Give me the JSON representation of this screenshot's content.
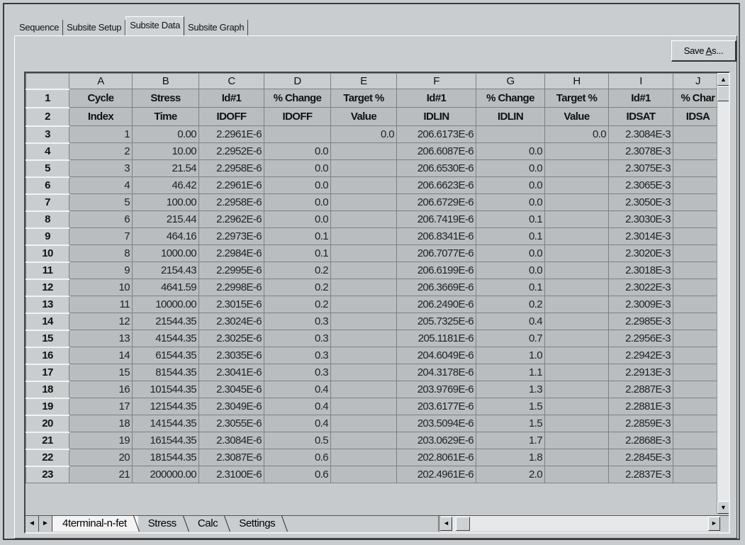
{
  "tabs": [
    {
      "label": "Sequence",
      "active": false
    },
    {
      "label": "Subsite Setup",
      "active": false
    },
    {
      "label": "Subsite Data",
      "active": true
    },
    {
      "label": "Subsite Graph",
      "active": false
    }
  ],
  "toolbar": {
    "save_as_prefix": "Save ",
    "save_as_mnemonic": "A",
    "save_as_suffix": "s..."
  },
  "grid": {
    "column_letters": [
      "A",
      "B",
      "C",
      "D",
      "E",
      "F",
      "G",
      "H",
      "I",
      "J"
    ],
    "header_row_1": [
      "Cycle",
      "Stress",
      "Id#1",
      "% Change",
      "Target %",
      "Id#1",
      "% Change",
      "Target %",
      "Id#1",
      "% Char"
    ],
    "header_row_2": [
      "Index",
      "Time",
      "IDOFF",
      "IDOFF",
      "Value",
      "IDLIN",
      "IDLIN",
      "Value",
      "IDSAT",
      "IDSA"
    ],
    "rows": [
      [
        "1",
        "0.00",
        "2.2961E-6",
        "",
        "0.0",
        "206.6173E-6",
        "",
        "0.0",
        "2.3084E-3",
        ""
      ],
      [
        "2",
        "10.00",
        "2.2952E-6",
        "0.0",
        "",
        "206.6087E-6",
        "0.0",
        "",
        "2.3078E-3",
        ""
      ],
      [
        "3",
        "21.54",
        "2.2958E-6",
        "0.0",
        "",
        "206.6530E-6",
        "0.0",
        "",
        "2.3075E-3",
        ""
      ],
      [
        "4",
        "46.42",
        "2.2961E-6",
        "0.0",
        "",
        "206.6623E-6",
        "0.0",
        "",
        "2.3065E-3",
        ""
      ],
      [
        "5",
        "100.00",
        "2.2958E-6",
        "0.0",
        "",
        "206.6729E-6",
        "0.0",
        "",
        "2.3050E-3",
        ""
      ],
      [
        "6",
        "215.44",
        "2.2962E-6",
        "0.0",
        "",
        "206.7419E-6",
        "0.1",
        "",
        "2.3030E-3",
        ""
      ],
      [
        "7",
        "464.16",
        "2.2973E-6",
        "0.1",
        "",
        "206.8341E-6",
        "0.1",
        "",
        "2.3014E-3",
        ""
      ],
      [
        "8",
        "1000.00",
        "2.2984E-6",
        "0.1",
        "",
        "206.7077E-6",
        "0.0",
        "",
        "2.3020E-3",
        ""
      ],
      [
        "9",
        "2154.43",
        "2.2995E-6",
        "0.2",
        "",
        "206.6199E-6",
        "0.0",
        "",
        "2.3018E-3",
        ""
      ],
      [
        "10",
        "4641.59",
        "2.2998E-6",
        "0.2",
        "",
        "206.3669E-6",
        "0.1",
        "",
        "2.3022E-3",
        ""
      ],
      [
        "11",
        "10000.00",
        "2.3015E-6",
        "0.2",
        "",
        "206.2490E-6",
        "0.2",
        "",
        "2.3009E-3",
        ""
      ],
      [
        "12",
        "21544.35",
        "2.3024E-6",
        "0.3",
        "",
        "205.7325E-6",
        "0.4",
        "",
        "2.2985E-3",
        ""
      ],
      [
        "13",
        "41544.35",
        "2.3025E-6",
        "0.3",
        "",
        "205.1181E-6",
        "0.7",
        "",
        "2.2956E-3",
        ""
      ],
      [
        "14",
        "61544.35",
        "2.3035E-6",
        "0.3",
        "",
        "204.6049E-6",
        "1.0",
        "",
        "2.2942E-3",
        ""
      ],
      [
        "15",
        "81544.35",
        "2.3041E-6",
        "0.3",
        "",
        "204.3178E-6",
        "1.1",
        "",
        "2.2913E-3",
        ""
      ],
      [
        "16",
        "101544.35",
        "2.3045E-6",
        "0.4",
        "",
        "203.9769E-6",
        "1.3",
        "",
        "2.2887E-3",
        ""
      ],
      [
        "17",
        "121544.35",
        "2.3049E-6",
        "0.4",
        "",
        "203.6177E-6",
        "1.5",
        "",
        "2.2881E-3",
        ""
      ],
      [
        "18",
        "141544.35",
        "2.3055E-6",
        "0.4",
        "",
        "203.5094E-6",
        "1.5",
        "",
        "2.2859E-3",
        ""
      ],
      [
        "19",
        "161544.35",
        "2.3084E-6",
        "0.5",
        "",
        "203.0629E-6",
        "1.7",
        "",
        "2.2868E-3",
        ""
      ],
      [
        "20",
        "181544.35",
        "2.3087E-6",
        "0.6",
        "",
        "202.8061E-6",
        "1.8",
        "",
        "2.2845E-3",
        ""
      ],
      [
        "21",
        "200000.00",
        "2.3100E-6",
        "0.6",
        "",
        "202.4961E-6",
        "2.0",
        "",
        "2.2837E-3",
        ""
      ]
    ]
  },
  "sheet_tabs": [
    {
      "label": "4terminal-n-fet",
      "active": true
    },
    {
      "label": "Stress",
      "active": false
    },
    {
      "label": "Calc",
      "active": false
    },
    {
      "label": "Settings",
      "active": false
    }
  ],
  "icons": {
    "scroll_up": "▲",
    "scroll_down": "▼",
    "scroll_left": "◄",
    "scroll_right": "►"
  }
}
